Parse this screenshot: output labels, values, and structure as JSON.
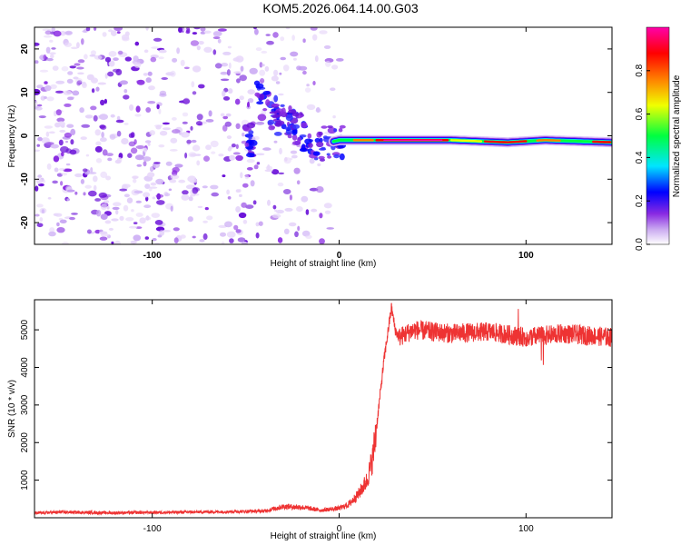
{
  "title": "KOM5.2026.064.14.00.G03",
  "chart_data": [
    {
      "type": "heatmap",
      "xlabel": "Height of straight line (km)",
      "ylabel": "Frequency (Hz)",
      "xlim": [
        -163,
        146
      ],
      "ylim": [
        -25,
        25
      ],
      "x_ticks": [
        -100,
        0,
        100
      ],
      "y_ticks": [
        -20,
        -10,
        0,
        10,
        20
      ],
      "colorbar": {
        "label": "Normalized spectral amplitude",
        "range": [
          0,
          1
        ],
        "ticks": [
          "0.0",
          "0.2",
          "0.4",
          "0.6",
          "0.8"
        ],
        "colormap": [
          "#ffffff",
          "#8a2be2",
          "#0000ff",
          "#00e5ff",
          "#00ff40",
          "#f0ff00",
          "#ff8000",
          "#ff0000",
          "#ff00aa"
        ]
      },
      "ridge": {
        "description_points_x": [
          -45,
          -35,
          -28,
          -20,
          -10,
          0,
          20,
          60,
          90,
          110,
          146
        ],
        "description_points_y": [
          9,
          5,
          3,
          1,
          -2,
          -1,
          -1,
          -1,
          -1.5,
          -1,
          -1.5
        ]
      }
    },
    {
      "type": "line",
      "xlabel": "Height of straight line (km)",
      "ylabel": "SNR (10 * v/v)",
      "xlim": [
        -163,
        146
      ],
      "ylim": [
        0,
        5800
      ],
      "x_ticks": [
        -100,
        0,
        100
      ],
      "y_ticks": [
        1000,
        2000,
        3000,
        4000,
        5000
      ],
      "series": [
        {
          "color": "#ee3333",
          "x": [
            -163,
            -150,
            -120,
            -100,
            -80,
            -60,
            -40,
            -30,
            -20,
            -10,
            0,
            5,
            10,
            15,
            18,
            20,
            22,
            24,
            26,
            28,
            30,
            32,
            40,
            60,
            80,
            100,
            120,
            146
          ],
          "y": [
            120,
            150,
            130,
            140,
            150,
            160,
            180,
            300,
            280,
            200,
            250,
            350,
            600,
            1000,
            1600,
            2400,
            3300,
            4200,
            4900,
            5600,
            5000,
            4800,
            5000,
            4900,
            4950,
            4800,
            4900,
            4800
          ]
        }
      ]
    }
  ]
}
